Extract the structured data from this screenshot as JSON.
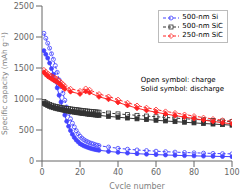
{
  "chart_data": {
    "type": "line",
    "title": "",
    "xlabel": "Cycle number",
    "ylabel": "Specific capacity (mAh g⁻¹)",
    "xlim": [
      0,
      100
    ],
    "ylim": [
      0,
      2500
    ],
    "xticks": [
      0,
      20,
      40,
      60,
      80,
      100
    ],
    "yticks": [
      0,
      500,
      1000,
      1500,
      2000,
      2500
    ],
    "grid": false,
    "legend": "upper right",
    "annotation": "Open symbol: charge\nSolid symbol: discharge",
    "series": [
      {
        "name": "500-nm Si",
        "color": "#4444ff",
        "marker": "open_circle",
        "line_style": "dashed",
        "x": [
          1,
          2,
          3,
          4,
          5,
          6,
          7,
          8,
          9,
          10,
          11,
          12,
          13,
          14,
          15,
          16,
          17,
          18,
          19,
          20,
          21,
          22,
          23,
          24,
          25,
          26,
          27,
          28,
          29,
          30,
          35,
          40,
          45,
          50,
          55,
          60,
          65,
          70,
          75,
          80,
          85,
          90,
          95,
          100
        ],
        "values": [
          2060,
          1980,
          1900,
          1820,
          1730,
          1640,
          1540,
          1430,
          1310,
          1200,
          1090,
          980,
          870,
          770,
          680,
          610,
          550,
          490,
          440,
          400,
          370,
          345,
          325,
          310,
          295,
          285,
          275,
          265,
          255,
          248,
          225,
          205,
          190,
          178,
          168,
          158,
          150,
          143,
          137,
          132,
          127,
          122,
          118,
          115
        ]
      },
      {
        "name": "500-nm Si",
        "color": "#4444ff",
        "marker": "filled_circle",
        "line_style": "solid",
        "x": [
          1,
          2,
          3,
          4,
          5,
          6,
          7,
          8,
          9,
          10,
          11,
          12,
          13,
          14,
          15,
          16,
          17,
          18,
          19,
          20,
          21,
          22,
          23,
          24,
          25,
          26,
          27,
          28,
          29,
          30,
          35,
          40,
          45,
          50,
          55,
          60,
          65,
          70,
          75,
          80,
          85,
          90,
          95,
          100
        ],
        "values": [
          1780,
          1720,
          1660,
          1580,
          1490,
          1400,
          1290,
          1180,
          1060,
          950,
          840,
          740,
          640,
          560,
          490,
          430,
          380,
          340,
          310,
          280,
          262,
          245,
          232,
          220,
          210,
          200,
          192,
          185,
          179,
          173,
          155,
          140,
          128,
          118,
          110,
          103,
          97,
          92,
          87,
          83,
          79,
          76,
          73,
          70
        ]
      },
      {
        "name": "500-nm SiC",
        "color": "#333333",
        "marker": "open_square",
        "line_style": "dashed",
        "x": [
          1,
          2,
          3,
          4,
          5,
          6,
          7,
          8,
          9,
          10,
          11,
          12,
          13,
          14,
          15,
          16,
          17,
          18,
          19,
          20,
          21,
          22,
          23,
          24,
          25,
          26,
          27,
          28,
          29,
          30,
          35,
          40,
          45,
          50,
          55,
          60,
          65,
          70,
          75,
          80,
          85,
          90,
          95,
          100
        ],
        "values": [
          960,
          940,
          925,
          910,
          900,
          890,
          882,
          876,
          870,
          865,
          858,
          852,
          848,
          844,
          840,
          836,
          832,
          828,
          824,
          820,
          816,
          812,
          808,
          805,
          802,
          799,
          796,
          793,
          790,
          787,
          773,
          760,
          748,
          736,
          725,
          714,
          703,
          692,
          682,
          672,
          662,
          653,
          644,
          635
        ]
      },
      {
        "name": "500-nm SiC",
        "color": "#333333",
        "marker": "filled_square",
        "line_style": "solid",
        "x": [
          1,
          2,
          3,
          4,
          5,
          6,
          7,
          8,
          9,
          10,
          11,
          12,
          13,
          14,
          15,
          16,
          17,
          18,
          19,
          20,
          21,
          22,
          23,
          24,
          25,
          26,
          27,
          28,
          29,
          30,
          35,
          40,
          45,
          50,
          55,
          60,
          65,
          70,
          75,
          80,
          85,
          90,
          95,
          100
        ],
        "values": [
          930,
          912,
          896,
          882,
          870,
          860,
          851,
          843,
          836,
          830,
          822,
          815,
          808,
          803,
          798,
          793,
          788,
          783,
          778,
          774,
          769,
          765,
          761,
          757,
          753,
          749,
          746,
          742,
          739,
          736,
          720,
          706,
          693,
          680,
          668,
          657,
          646,
          635,
          625,
          615,
          605,
          596,
          587,
          578
        ]
      },
      {
        "name": "250-nm SiC",
        "color": "#ff2222",
        "marker": "open_diamond",
        "line_style": "dashed",
        "x": [
          1,
          2,
          3,
          4,
          5,
          6,
          7,
          8,
          9,
          10,
          11,
          12,
          15,
          20,
          23,
          25,
          30,
          35,
          40,
          45,
          50,
          55,
          60,
          65,
          70,
          75,
          80,
          85,
          90,
          95,
          100
        ],
        "values": [
          1470,
          1440,
          1410,
          1390,
          1370,
          1355,
          1340,
          1320,
          1295,
          1268,
          1240,
          1210,
          1165,
          1130,
          1170,
          1150,
          1080,
          1040,
          990,
          940,
          895,
          860,
          830,
          800,
          775,
          750,
          725,
          700,
          678,
          658,
          640
        ]
      },
      {
        "name": "250-nm SiC",
        "color": "#ff2222",
        "marker": "filled_diamond",
        "line_style": "solid",
        "x": [
          1,
          2,
          3,
          4,
          5,
          6,
          7,
          8,
          9,
          10,
          11,
          12,
          15,
          20,
          23,
          25,
          30,
          35,
          40,
          45,
          50,
          55,
          60,
          65,
          70,
          75,
          80,
          85,
          90,
          95,
          100
        ],
        "values": [
          1430,
          1395,
          1365,
          1345,
          1325,
          1308,
          1292,
          1272,
          1248,
          1220,
          1192,
          1163,
          1118,
          1082,
          1122,
          1103,
          1035,
          995,
          945,
          896,
          852,
          816,
          787,
          758,
          733,
          708,
          684,
          660,
          638,
          618,
          600
        ]
      }
    ]
  }
}
